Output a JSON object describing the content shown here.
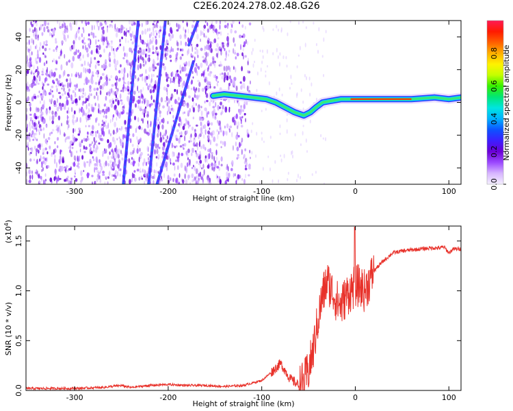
{
  "title": "C2E6.2024.278.02.48.G26",
  "chart_data": [
    {
      "type": "heatmap",
      "xlabel": "Height of straight line (km)",
      "ylabel": "Frequency (Hz)",
      "xlim": [
        -352,
        113
      ],
      "ylim": [
        -50,
        50
      ],
      "x_ticks": [
        -300,
        -200,
        -100,
        0,
        100
      ],
      "y_ticks": [
        -40,
        -20,
        0,
        20,
        40
      ],
      "colorbar": {
        "label": "Normalized spectral amplitude",
        "range": [
          0,
          1
        ],
        "ticks": [
          "0.0",
          "0.2",
          "0.4",
          "0.6",
          "0.8"
        ],
        "tick_values": [
          0,
          0.2,
          0.4,
          0.6,
          0.8
        ],
        "colors": [
          "#f4f0ff",
          "#d7b5ff",
          "#9b49ff",
          "#6b00d6",
          "#3c1fff",
          "#0d52ff",
          "#00b2ff",
          "#00e5e0",
          "#00e676",
          "#37f000",
          "#c4ff00",
          "#fff200",
          "#ffb000",
          "#ff5e00",
          "#ff1a00",
          "#ff1a55"
        ]
      },
      "features": {
        "diagonal_streaks": [
          {
            "from": [
              -248,
              -50
            ],
            "to": [
              -232,
              50
            ]
          },
          {
            "from": [
              -221,
              -50
            ],
            "to": [
              -203,
              50
            ]
          },
          {
            "from": [
              -178,
              35
            ],
            "to": [
              -168,
              50
            ]
          },
          {
            "from": [
              -212,
              -50
            ],
            "to": [
              -173,
              25
            ]
          }
        ],
        "main_trace": [
          [
            -152,
            4
          ],
          [
            -140,
            5
          ],
          [
            -125,
            4
          ],
          [
            -110,
            3
          ],
          [
            -95,
            2
          ],
          [
            -85,
            0
          ],
          [
            -75,
            -3
          ],
          [
            -65,
            -6
          ],
          [
            -55,
            -8
          ],
          [
            -48,
            -6
          ],
          [
            -42,
            -3
          ],
          [
            -35,
            0
          ],
          [
            -25,
            1
          ],
          [
            -15,
            2
          ],
          [
            -5,
            2
          ],
          [
            10,
            2
          ],
          [
            30,
            2
          ],
          [
            60,
            2
          ],
          [
            85,
            3
          ],
          [
            100,
            2
          ],
          [
            113,
            3
          ]
        ]
      }
    },
    {
      "type": "line",
      "xlabel": "Height of straight line (km)",
      "ylabel": "SNR (10 * v/v)",
      "exponent_label": "(x10",
      "exponent_power": "4",
      "exponent_close": ")",
      "xlim": [
        -352,
        113
      ],
      "ylim": [
        0,
        1.65
      ],
      "x_ticks": [
        -300,
        -200,
        -100,
        0,
        100
      ],
      "y_ticks": [
        "0.0",
        "0.5",
        "1.0",
        "1.5"
      ],
      "y_tick_values": [
        0,
        0.5,
        1.0,
        1.5
      ],
      "series": [
        {
          "color": "#e8312a",
          "x": [
            -352,
            -330,
            -300,
            -270,
            -250,
            -240,
            -220,
            -200,
            -180,
            -160,
            -140,
            -120,
            -100,
            -90,
            -80,
            -75,
            -70,
            -60,
            -55,
            -50,
            -45,
            -40,
            -35,
            -30,
            -25,
            -20,
            -15,
            -10,
            -5,
            0,
            5,
            10,
            15,
            20,
            25,
            30,
            40,
            50,
            60,
            70,
            80,
            90,
            95,
            100,
            105,
            113
          ],
          "y": [
            0.02,
            0.02,
            0.02,
            0.03,
            0.05,
            0.03,
            0.05,
            0.06,
            0.05,
            0.05,
            0.04,
            0.05,
            0.1,
            0.18,
            0.27,
            0.2,
            0.12,
            0.05,
            0.08,
            0.2,
            0.4,
            0.7,
            0.95,
            1.1,
            1.0,
            0.9,
            0.85,
            0.95,
            1.0,
            1.05,
            1.05,
            1.0,
            1.1,
            1.2,
            1.25,
            1.3,
            1.38,
            1.4,
            1.41,
            1.42,
            1.43,
            1.43,
            1.44,
            1.38,
            1.42,
            1.42
          ]
        }
      ]
    }
  ]
}
